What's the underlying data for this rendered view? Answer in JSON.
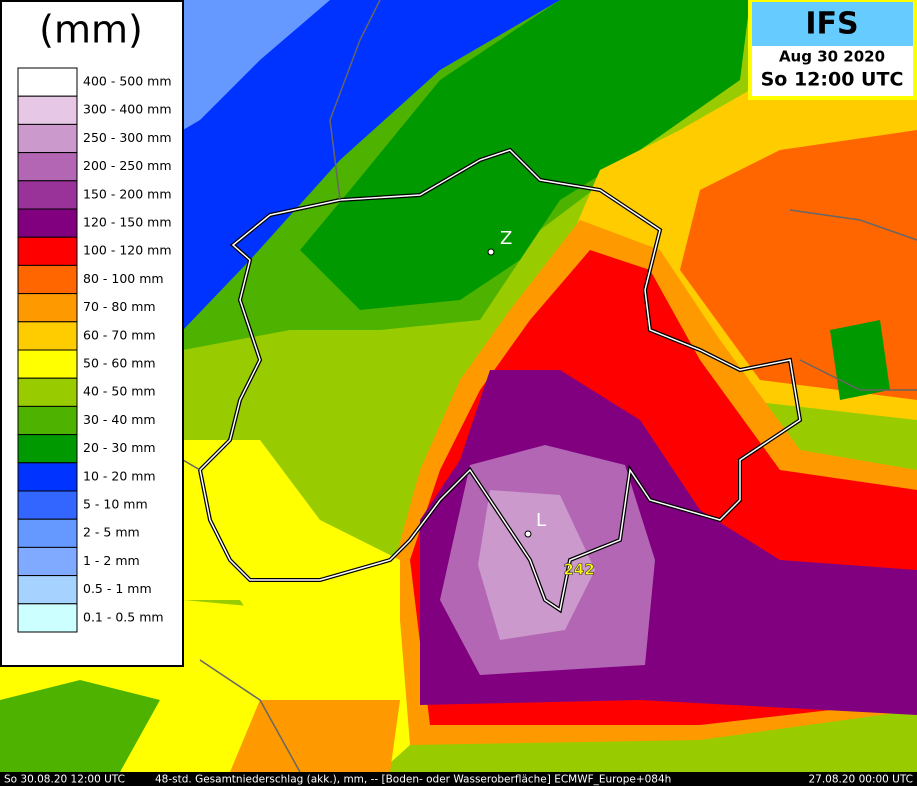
{
  "legend": {
    "title": "(mm)",
    "items": [
      {
        "label": "400 - 500 mm",
        "color": "#ffffff"
      },
      {
        "label": "300 - 400 mm",
        "color": "#e6c8e6"
      },
      {
        "label": "250 - 300 mm",
        "color": "#cc99cc"
      },
      {
        "label": "200 - 250 mm",
        "color": "#b366b3"
      },
      {
        "label": "150 - 200 mm",
        "color": "#993399"
      },
      {
        "label": "120 - 150 mm",
        "color": "#800080"
      },
      {
        "label": "100 - 120 mm",
        "color": "#ff0000"
      },
      {
        "label": "80 - 100 mm",
        "color": "#ff6600"
      },
      {
        "label": "70 - 80 mm",
        "color": "#ff9900"
      },
      {
        "label": "60 - 70 mm",
        "color": "#ffcc00"
      },
      {
        "label": "50 - 60 mm",
        "color": "#ffff00"
      },
      {
        "label": "40 - 50 mm",
        "color": "#99cc00"
      },
      {
        "label": "30 - 40 mm",
        "color": "#4db300"
      },
      {
        "label": "20 - 30 mm",
        "color": "#009900"
      },
      {
        "label": "10 - 20 mm",
        "color": "#0033ff"
      },
      {
        "label": "5 - 10 mm",
        "color": "#3366ff"
      },
      {
        "label": "2 - 5 mm",
        "color": "#6699ff"
      },
      {
        "label": "1 - 2 mm",
        "color": "#80aaff"
      },
      {
        "label": "0.5 - 1 mm",
        "color": "#a6d2ff"
      },
      {
        "label": "0.1 - 0.5 mm",
        "color": "#ccffff"
      }
    ]
  },
  "header": {
    "model": "IFS",
    "date": "Aug 30 2020",
    "time": "So 12:00 UTC"
  },
  "places": [
    "Z",
    "L"
  ],
  "max_value": "242",
  "footer": {
    "valid": "So 30.08.20 12:00 UTC",
    "description": "48-std. Gesamtniederschlag (akk.), mm, -- [Boden- oder Wasseroberfläche] ECMWF_Europe+084h",
    "run": "27.08.20 00:00 UTC"
  }
}
